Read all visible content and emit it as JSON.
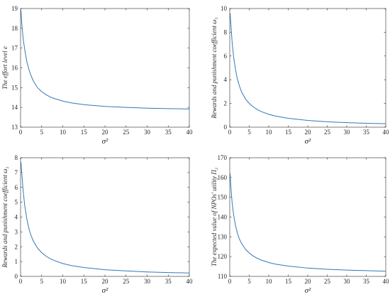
{
  "chart_data": [
    {
      "type": "line",
      "xlabel": "σ²",
      "ylabel": "The effort level e",
      "xlim": [
        0,
        40
      ],
      "ylim": [
        13,
        19
      ],
      "xticks": [
        0,
        5,
        10,
        15,
        20,
        25,
        30,
        35,
        40
      ],
      "yticks": [
        13,
        14,
        15,
        16,
        17,
        18,
        19
      ],
      "series": [
        {
          "color": "#3477b8",
          "x": [
            0.1,
            0.3,
            0.6,
            1,
            1.5,
            2,
            2.5,
            3,
            4,
            5,
            6,
            7,
            8,
            10,
            12,
            15,
            20,
            25,
            30,
            35,
            40
          ],
          "y": [
            18.9,
            18.2,
            17.5,
            16.9,
            16.3,
            15.9,
            15.6,
            15.35,
            15.0,
            14.8,
            14.65,
            14.53,
            14.45,
            14.32,
            14.23,
            14.14,
            14.05,
            14.0,
            13.96,
            13.94,
            13.92
          ]
        }
      ]
    },
    {
      "type": "line",
      "xlabel": "σ²",
      "ylabel": "Rewards and punishment coefficient ω₁",
      "xlim": [
        0,
        40
      ],
      "ylim": [
        0,
        10
      ],
      "xticks": [
        0,
        5,
        10,
        15,
        20,
        25,
        30,
        35,
        40
      ],
      "yticks": [
        0,
        2,
        4,
        6,
        8,
        10
      ],
      "series": [
        {
          "color": "#3477b8",
          "x": [
            0.1,
            0.3,
            0.6,
            1,
            1.5,
            2,
            2.5,
            3,
            4,
            5,
            6,
            7,
            8,
            10,
            12,
            15,
            20,
            25,
            30,
            35,
            40
          ],
          "y": [
            9.6,
            8.6,
            7.2,
            5.9,
            4.8,
            4.0,
            3.45,
            3.0,
            2.4,
            2.0,
            1.72,
            1.5,
            1.33,
            1.08,
            0.92,
            0.75,
            0.57,
            0.46,
            0.38,
            0.33,
            0.29
          ]
        }
      ]
    },
    {
      "type": "line",
      "xlabel": "σ²",
      "ylabel": "Rewards and punishment coefficient ω₂",
      "xlim": [
        0,
        40
      ],
      "ylim": [
        0,
        8
      ],
      "xticks": [
        0,
        5,
        10,
        15,
        20,
        25,
        30,
        35,
        40
      ],
      "yticks": [
        0,
        1,
        2,
        3,
        4,
        5,
        6,
        7,
        8
      ],
      "series": [
        {
          "color": "#3477b8",
          "x": [
            0.1,
            0.3,
            0.6,
            1,
            1.5,
            2,
            2.5,
            3,
            4,
            5,
            6,
            7,
            8,
            10,
            12,
            15,
            20,
            25,
            30,
            35,
            40
          ],
          "y": [
            7.7,
            6.9,
            5.8,
            4.75,
            3.85,
            3.2,
            2.75,
            2.4,
            1.92,
            1.6,
            1.37,
            1.2,
            1.07,
            0.87,
            0.73,
            0.6,
            0.45,
            0.37,
            0.3,
            0.26,
            0.23
          ]
        }
      ]
    },
    {
      "type": "line",
      "xlabel": "σ²",
      "ylabel": "The expected value of NPOs' utility Π₂",
      "xlim": [
        0,
        40
      ],
      "ylim": [
        110,
        170
      ],
      "xticks": [
        0,
        5,
        10,
        15,
        20,
        25,
        30,
        35,
        40
      ],
      "yticks": [
        110,
        120,
        130,
        140,
        150,
        160,
        170
      ],
      "series": [
        {
          "color": "#3477b8",
          "x": [
            0.1,
            0.3,
            0.6,
            1,
            1.5,
            2,
            2.5,
            3,
            4,
            5,
            6,
            7,
            8,
            10,
            12,
            15,
            20,
            25,
            30,
            35,
            40
          ],
          "y": [
            162,
            155,
            147.5,
            141,
            135.5,
            131.5,
            128.8,
            126.8,
            123.8,
            121.8,
            120.3,
            119.2,
            118.3,
            117,
            116.1,
            115.2,
            114.2,
            113.6,
            113.2,
            112.9,
            112.6
          ]
        }
      ]
    }
  ]
}
